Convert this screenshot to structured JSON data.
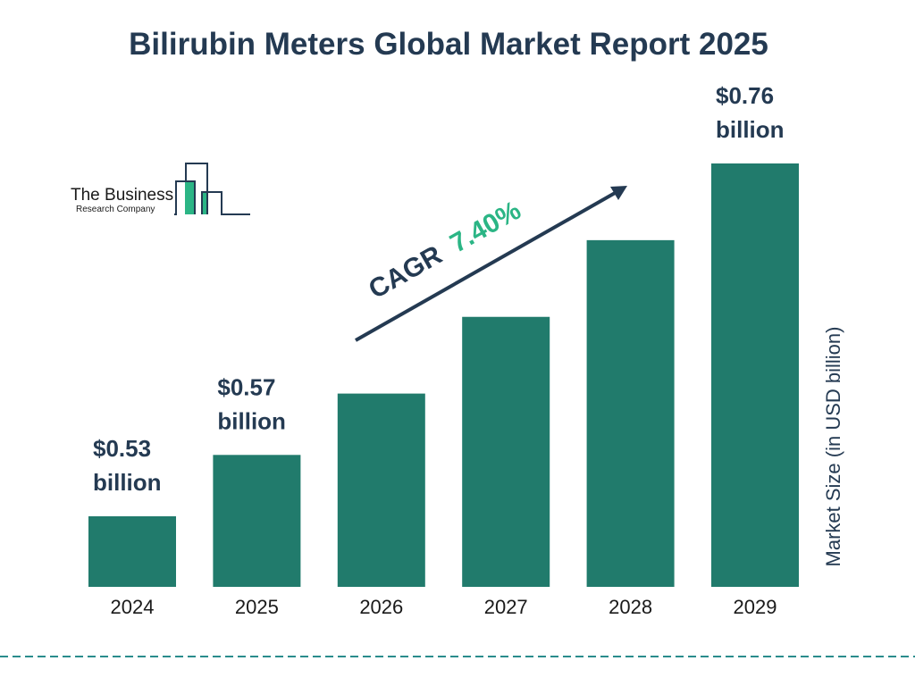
{
  "chart_data": {
    "type": "bar",
    "title": "Bilirubin Meters Global Market Report 2025",
    "categories": [
      "2024",
      "2025",
      "2026",
      "2027",
      "2028",
      "2029"
    ],
    "values": [
      0.53,
      0.57,
      0.61,
      0.66,
      0.71,
      0.76
    ],
    "data_labels": [
      {
        "index": 0,
        "line1": "$0.53",
        "line2": "billion"
      },
      {
        "index": 1,
        "line1": "$0.57",
        "line2": "billion"
      },
      {
        "index": 5,
        "line1": "$0.76",
        "line2": "billion"
      }
    ],
    "xlabel": "",
    "ylabel": "Market Size (in USD billion)",
    "annotation": {
      "prefix": "CAGR",
      "value": "7.40%"
    },
    "grid": false,
    "colors": {
      "bar": "#217b6c",
      "text": "#243a52",
      "accent": "#2bb585",
      "divider": "#2a8c8c"
    }
  },
  "logo": {
    "line1": "The Business",
    "line2": "Research Company"
  }
}
